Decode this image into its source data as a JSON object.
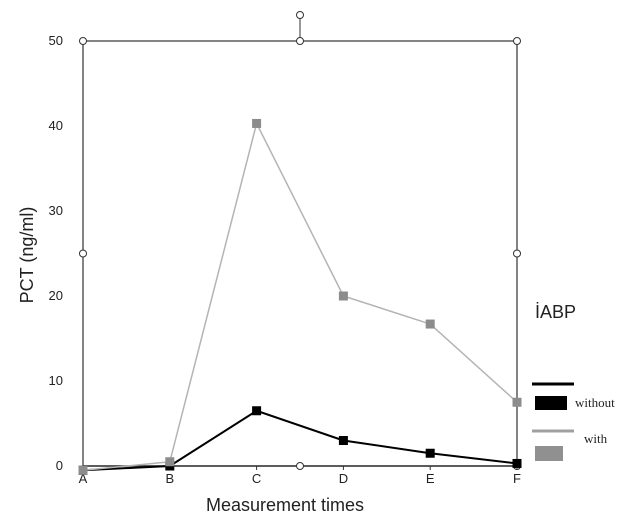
{
  "chart_data": {
    "type": "line",
    "xlabel": "Measurement times",
    "ylabel": "PCT (ng/ml)",
    "categories": [
      "A",
      "B",
      "C",
      "D",
      "E",
      "F"
    ],
    "ylim": [
      0,
      50
    ],
    "yticks": [
      "0",
      "10",
      "20",
      "30",
      "40",
      "50"
    ],
    "grid": false,
    "legend": {
      "title": "İABP",
      "placement": "right",
      "entries": [
        "without",
        "with"
      ]
    },
    "series": [
      {
        "name": "without",
        "color": "#000000",
        "values": [
          -0.5,
          0,
          6.5,
          3,
          1.5,
          0.3
        ]
      },
      {
        "name": "with",
        "color": "#a0a0a0",
        "values": [
          -0.5,
          0.5,
          40.3,
          20,
          16.7,
          7.5
        ]
      }
    ]
  }
}
